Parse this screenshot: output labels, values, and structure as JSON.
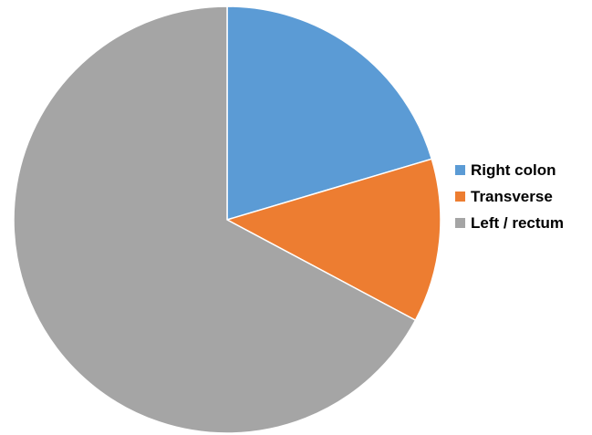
{
  "chart_data": {
    "type": "pie",
    "title": "",
    "categories": [
      "Right colon",
      "Transverse",
      "Left / rectum"
    ],
    "values": [
      20.4,
      12.4,
      67.2
    ],
    "colors": [
      "#5B9BD5",
      "#ED7D31",
      "#A5A5A5"
    ],
    "start_angle_deg": 0,
    "direction": "clockwise",
    "legend_position": "right"
  },
  "legend": {
    "items": [
      {
        "label": "Right colon",
        "color": "#5B9BD5"
      },
      {
        "label": "Transverse",
        "color": "#ED7D31"
      },
      {
        "label": "Left / rectum",
        "color": "#A5A5A5"
      }
    ]
  }
}
